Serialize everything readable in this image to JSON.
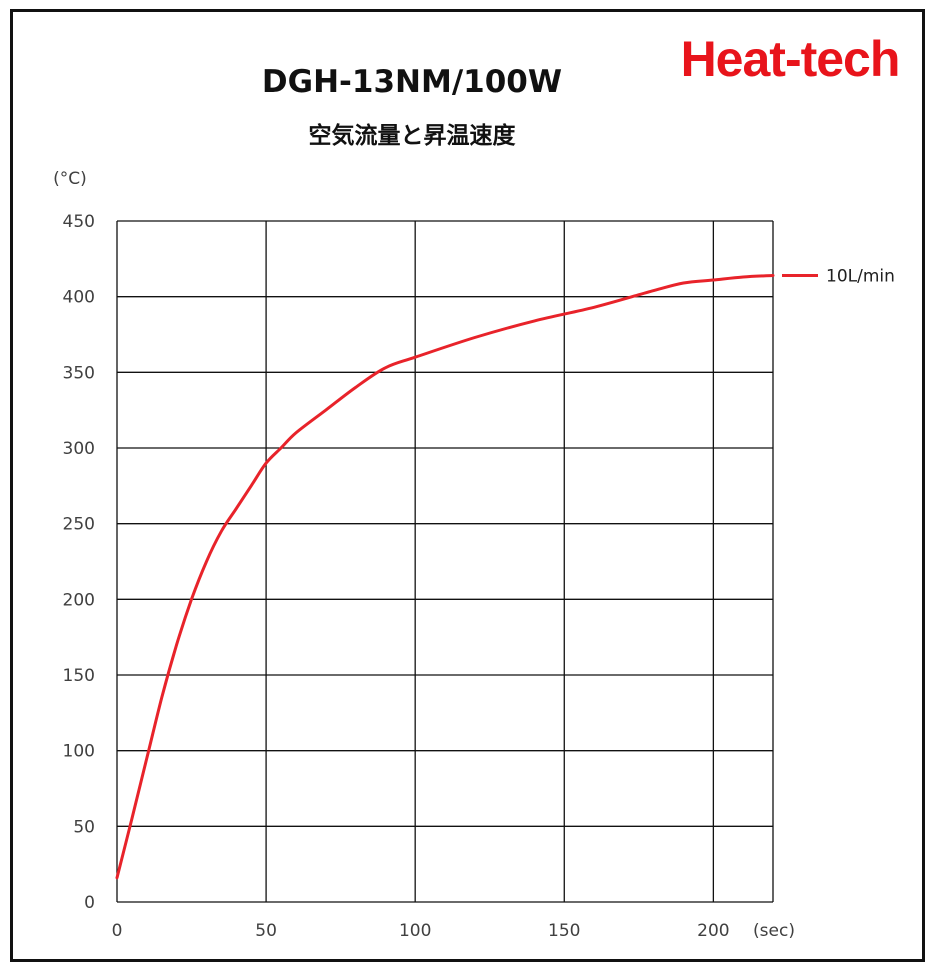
{
  "brand": "Heat-tech",
  "chart_data": {
    "type": "line",
    "title": "DGH-13NM/100W",
    "subtitle": "空気流量と昇温速度",
    "ylabel": "(°C)",
    "xlabel": "(sec)",
    "xlim": [
      0,
      220
    ],
    "ylim": [
      0,
      450
    ],
    "xticks": [
      "0",
      "50",
      "100",
      "150",
      "200"
    ],
    "yticks": [
      "0",
      "50",
      "100",
      "150",
      "200",
      "250",
      "300",
      "350",
      "400",
      "450"
    ],
    "grid": true,
    "legend_position": "right",
    "series": [
      {
        "name": "10L/min",
        "color": "#e8232a",
        "x": [
          0,
          5,
          10,
          15,
          20,
          25,
          30,
          35,
          40,
          45,
          50,
          55,
          60,
          70,
          80,
          90,
          100,
          120,
          140,
          160,
          180,
          190,
          200,
          210,
          220
        ],
        "y": [
          16,
          55,
          95,
          135,
          170,
          200,
          225,
          245,
          260,
          275,
          290,
          300,
          310,
          325,
          340,
          353,
          360,
          373,
          384,
          393,
          404,
          409,
          411,
          413,
          414
        ]
      }
    ]
  }
}
